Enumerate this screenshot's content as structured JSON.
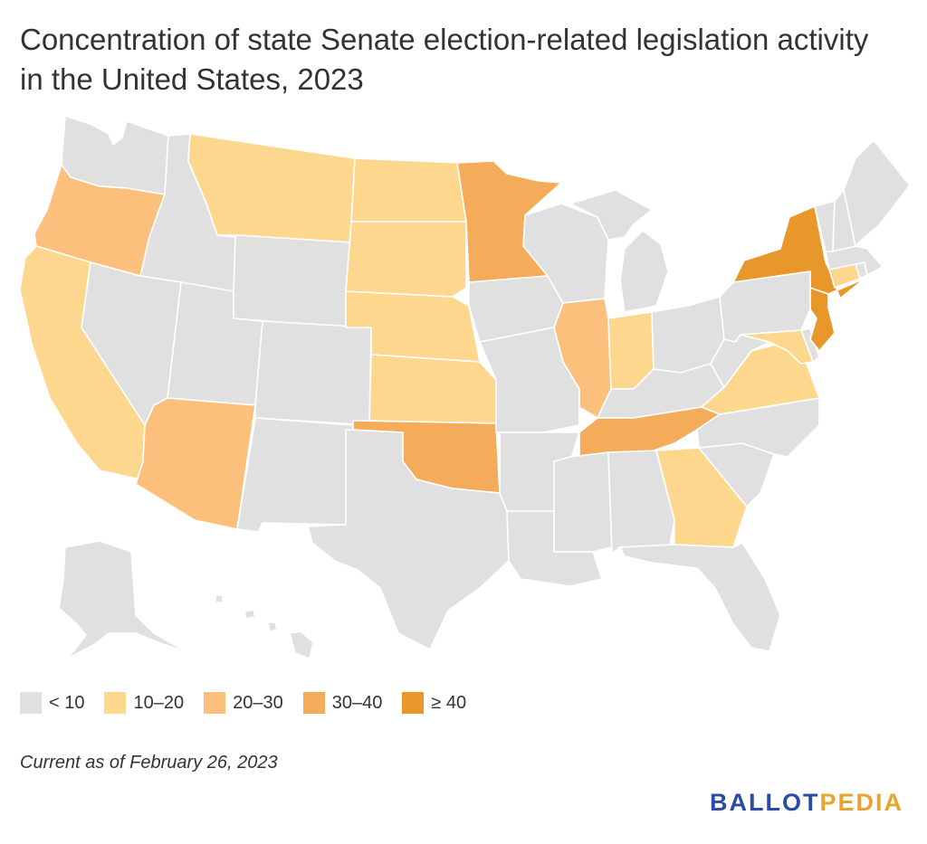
{
  "title": "Concentration of state Senate election-related legislation activity in the United States, 2023",
  "legend": [
    {
      "label": "< 10",
      "color": "#e0e0e0"
    },
    {
      "label": "10–20",
      "color": "#fdd78e"
    },
    {
      "label": "20–30",
      "color": "#fcc07c"
    },
    {
      "label": "30–40",
      "color": "#f4ab5a"
    },
    {
      "label": "≥ 40",
      "color": "#e8972a"
    }
  ],
  "note": "Current as of February 26, 2023",
  "logo": {
    "part1": "BALLOT",
    "part2": "PEDIA"
  },
  "colors": {
    "text": "#333333",
    "border": "#ffffff",
    "logo_blue": "#2b4ca5",
    "logo_gold": "#e9a430"
  },
  "states": [
    {
      "id": "WA",
      "name": "Washington",
      "bin": 0
    },
    {
      "id": "OR",
      "name": "Oregon",
      "bin": 2
    },
    {
      "id": "CA",
      "name": "California",
      "bin": 1
    },
    {
      "id": "ID",
      "name": "Idaho",
      "bin": 0
    },
    {
      "id": "NV",
      "name": "Nevada",
      "bin": 0
    },
    {
      "id": "MT",
      "name": "Montana",
      "bin": 1
    },
    {
      "id": "WY",
      "name": "Wyoming",
      "bin": 0
    },
    {
      "id": "UT",
      "name": "Utah",
      "bin": 0
    },
    {
      "id": "AZ",
      "name": "Arizona",
      "bin": 2
    },
    {
      "id": "CO",
      "name": "Colorado",
      "bin": 0
    },
    {
      "id": "NM",
      "name": "New Mexico",
      "bin": 0
    },
    {
      "id": "ND",
      "name": "North Dakota",
      "bin": 1
    },
    {
      "id": "SD",
      "name": "South Dakota",
      "bin": 1
    },
    {
      "id": "NE",
      "name": "Nebraska",
      "bin": 1
    },
    {
      "id": "KS",
      "name": "Kansas",
      "bin": 1
    },
    {
      "id": "OK",
      "name": "Oklahoma",
      "bin": 3
    },
    {
      "id": "TX",
      "name": "Texas",
      "bin": 0
    },
    {
      "id": "MN",
      "name": "Minnesota",
      "bin": 3
    },
    {
      "id": "IA",
      "name": "Iowa",
      "bin": 0
    },
    {
      "id": "MO",
      "name": "Missouri",
      "bin": 0
    },
    {
      "id": "AR",
      "name": "Arkansas",
      "bin": 0
    },
    {
      "id": "LA",
      "name": "Louisiana",
      "bin": 0
    },
    {
      "id": "WI",
      "name": "Wisconsin",
      "bin": 0
    },
    {
      "id": "IL",
      "name": "Illinois",
      "bin": 2
    },
    {
      "id": "MI",
      "name": "Michigan",
      "bin": 0
    },
    {
      "id": "IN",
      "name": "Indiana",
      "bin": 1
    },
    {
      "id": "OH",
      "name": "Ohio",
      "bin": 0
    },
    {
      "id": "KY",
      "name": "Kentucky",
      "bin": 0
    },
    {
      "id": "TN",
      "name": "Tennessee",
      "bin": 3
    },
    {
      "id": "MS",
      "name": "Mississippi",
      "bin": 0
    },
    {
      "id": "AL",
      "name": "Alabama",
      "bin": 0
    },
    {
      "id": "GA",
      "name": "Georgia",
      "bin": 1
    },
    {
      "id": "FL",
      "name": "Florida",
      "bin": 0
    },
    {
      "id": "SC",
      "name": "South Carolina",
      "bin": 0
    },
    {
      "id": "NC",
      "name": "North Carolina",
      "bin": 0
    },
    {
      "id": "VA",
      "name": "Virginia",
      "bin": 1
    },
    {
      "id": "WV",
      "name": "West Virginia",
      "bin": 0
    },
    {
      "id": "MD",
      "name": "Maryland",
      "bin": 1
    },
    {
      "id": "DE",
      "name": "Delaware",
      "bin": 0
    },
    {
      "id": "PA",
      "name": "Pennsylvania",
      "bin": 0
    },
    {
      "id": "NJ",
      "name": "New Jersey",
      "bin": 4
    },
    {
      "id": "NY",
      "name": "New York",
      "bin": 4
    },
    {
      "id": "CT",
      "name": "Connecticut",
      "bin": 1
    },
    {
      "id": "RI",
      "name": "Rhode Island",
      "bin": 0
    },
    {
      "id": "MA",
      "name": "Massachusetts",
      "bin": 0
    },
    {
      "id": "VT",
      "name": "Vermont",
      "bin": 0
    },
    {
      "id": "NH",
      "name": "New Hampshire",
      "bin": 0
    },
    {
      "id": "ME",
      "name": "Maine",
      "bin": 0
    },
    {
      "id": "AK",
      "name": "Alaska",
      "bin": 0
    },
    {
      "id": "HI",
      "name": "Hawaii",
      "bin": 0
    }
  ]
}
